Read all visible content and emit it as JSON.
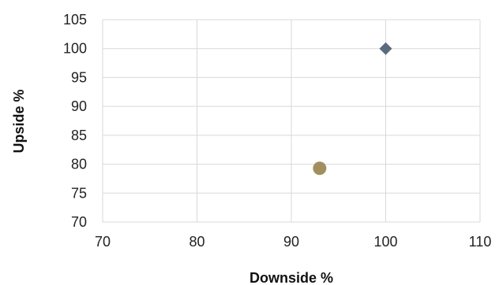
{
  "chart_data": {
    "type": "scatter",
    "title": "",
    "xlabel": "Downside %",
    "ylabel": "Upside %",
    "xlim": [
      70,
      110
    ],
    "ylim": [
      70,
      105
    ],
    "x_ticks": [
      70,
      80,
      90,
      100,
      110
    ],
    "y_ticks": [
      70,
      75,
      80,
      85,
      90,
      95,
      100,
      105
    ],
    "grid": true,
    "legend": "none",
    "series": [
      {
        "marker": "diamond",
        "color": "#5b6b7b",
        "points": [
          {
            "x": 100,
            "y": 100
          }
        ]
      },
      {
        "marker": "circle",
        "color": "#a18f5f",
        "points": [
          {
            "x": 93,
            "y": 79.3
          }
        ]
      }
    ]
  }
}
